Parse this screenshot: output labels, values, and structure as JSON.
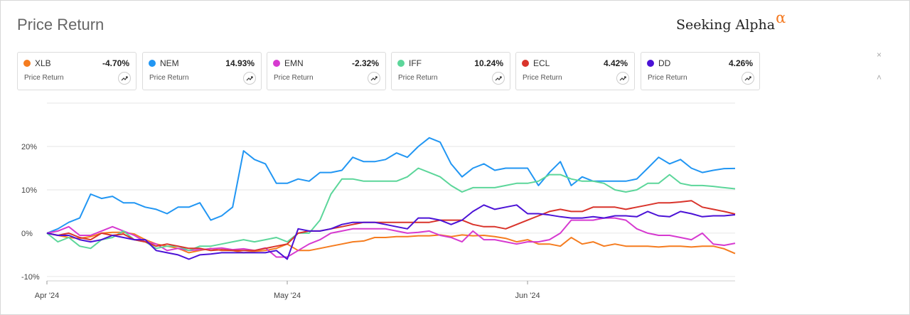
{
  "header": {
    "title": "Price Return",
    "brand": "Seeking Alpha",
    "brand_mark": "α"
  },
  "cards": [
    {
      "ticker": "XLB",
      "change": "-4.70%",
      "label": "Price Return",
      "color": "#f57c1f"
    },
    {
      "ticker": "NEM",
      "change": "14.93%",
      "label": "Price Return",
      "color": "#2196f3"
    },
    {
      "ticker": "EMN",
      "change": "-2.32%",
      "label": "Price Return",
      "color": "#d63ad0"
    },
    {
      "ticker": "IFF",
      "change": "10.24%",
      "label": "Price Return",
      "color": "#5cd69a"
    },
    {
      "ticker": "ECL",
      "change": "4.42%",
      "label": "Price Return",
      "color": "#d9342b"
    },
    {
      "ticker": "DD",
      "change": "4.26%",
      "label": "Price Return",
      "color": "#4b12d6"
    }
  ],
  "controls": {
    "close_icon": "close-icon",
    "collapse_icon": "chevron-up-icon",
    "chart_button_icon": "trend-line-icon",
    "close_glyph": "×",
    "collapse_glyph": "˄"
  },
  "chart_data": {
    "type": "line",
    "title": "",
    "xlabel": "",
    "ylabel": "",
    "x": [
      "2024-04-01",
      "2024-04-02",
      "2024-04-03",
      "2024-04-04",
      "2024-04-05",
      "2024-04-08",
      "2024-04-09",
      "2024-04-10",
      "2024-04-11",
      "2024-04-12",
      "2024-04-15",
      "2024-04-16",
      "2024-04-17",
      "2024-04-18",
      "2024-04-19",
      "2024-04-22",
      "2024-04-23",
      "2024-04-24",
      "2024-04-25",
      "2024-04-26",
      "2024-04-29",
      "2024-04-30",
      "2024-05-01",
      "2024-05-02",
      "2024-05-03",
      "2024-05-06",
      "2024-05-07",
      "2024-05-08",
      "2024-05-09",
      "2024-05-10",
      "2024-05-13",
      "2024-05-14",
      "2024-05-15",
      "2024-05-16",
      "2024-05-17",
      "2024-05-20",
      "2024-05-21",
      "2024-05-22",
      "2024-05-23",
      "2024-05-24",
      "2024-05-28",
      "2024-05-29",
      "2024-05-30",
      "2024-05-31",
      "2024-06-03",
      "2024-06-04",
      "2024-06-05",
      "2024-06-06",
      "2024-06-07",
      "2024-06-10",
      "2024-06-11",
      "2024-06-12",
      "2024-06-13",
      "2024-06-14",
      "2024-06-17",
      "2024-06-18",
      "2024-06-20",
      "2024-06-21",
      "2024-06-24",
      "2024-06-25",
      "2024-06-26",
      "2024-06-27",
      "2024-06-28",
      "2024-07-01"
    ],
    "x_ticks": [
      "Apr '24",
      "May '24",
      "Jun '24"
    ],
    "y_ticks": [
      "20%",
      "10%",
      "0%",
      "-10%"
    ],
    "ylim": [
      -11,
      30
    ],
    "grid": true,
    "legend": "cards-top",
    "series": [
      {
        "name": "XLB",
        "color": "#f57c1f",
        "values": [
          0,
          -0.5,
          -1,
          -1.2,
          -0.8,
          0,
          0.2,
          0.2,
          -0.2,
          -1.5,
          -2.5,
          -3,
          -3.5,
          -4.5,
          -4,
          -3.5,
          -4,
          -4,
          -4.5,
          -4.2,
          -4,
          -3.5,
          -2.5,
          -4,
          -4,
          -3.5,
          -3,
          -2.5,
          -2,
          -1.8,
          -1,
          -1,
          -0.8,
          -0.8,
          -0.6,
          -0.6,
          -0.4,
          -0.8,
          -0.4,
          -0.6,
          -0.5,
          -0.8,
          -1.2,
          -2,
          -1.5,
          -2.5,
          -2.5,
          -3,
          -1,
          -2.5,
          -2,
          -3,
          -2.5,
          -3,
          -3,
          -3,
          -3.2,
          -3,
          -3,
          -3.2,
          -3,
          -3,
          -3.6,
          -4.7
        ]
      },
      {
        "name": "NEM",
        "color": "#2196f3",
        "values": [
          0,
          1,
          2.5,
          3.5,
          9,
          8,
          8.5,
          7,
          7,
          6,
          5.5,
          4.5,
          6,
          6,
          7,
          3,
          4,
          6,
          19,
          17,
          16,
          11.5,
          11.5,
          12.5,
          12,
          14,
          14,
          14.5,
          17.5,
          16.5,
          16.5,
          17,
          18.5,
          17.5,
          20,
          22,
          21,
          16,
          13,
          15,
          16,
          14.5,
          15,
          15,
          15,
          11,
          14,
          16.5,
          11,
          13,
          12,
          12,
          12,
          12,
          12.5,
          15,
          17.5,
          16,
          17,
          15,
          14,
          14.5,
          14.9,
          14.93
        ]
      },
      {
        "name": "EMN",
        "color": "#d63ad0",
        "values": [
          0,
          0.5,
          1.5,
          -0.5,
          -0.5,
          0.5,
          1.5,
          0.5,
          -0.5,
          -2,
          -2.5,
          -4,
          -3.5,
          -4,
          -3.8,
          -3.6,
          -3.4,
          -3.8,
          -3.6,
          -4,
          -3.4,
          -5.5,
          -5.5,
          -4,
          -2.5,
          -1.5,
          0,
          0.5,
          1,
          1,
          1,
          1,
          0.5,
          0,
          0.2,
          0.5,
          -0.5,
          -1,
          -2,
          0.5,
          -1.5,
          -1.5,
          -2,
          -2.5,
          -2,
          -2,
          -1.5,
          0,
          3,
          3,
          3,
          3.5,
          3.5,
          3,
          1,
          0,
          -0.5,
          -0.5,
          -1,
          -1.5,
          0,
          -2.5,
          -2.8,
          -2.32
        ]
      },
      {
        "name": "IFF",
        "color": "#5cd69a",
        "values": [
          0,
          -2,
          -1,
          -3,
          -3.5,
          -1.5,
          -1,
          0.5,
          -1.5,
          -2,
          -3.5,
          -3,
          -3,
          -4,
          -3,
          -3,
          -2.5,
          -2,
          -1.5,
          -2,
          -1.5,
          -1,
          -2,
          0,
          0,
          3,
          9,
          12.5,
          12.5,
          12,
          12,
          12,
          12,
          13,
          15,
          14,
          13,
          11,
          9.5,
          10.5,
          10.5,
          10.5,
          11,
          11.5,
          11.5,
          12,
          13.5,
          13.5,
          12.5,
          12,
          12,
          11.5,
          10,
          9.5,
          10,
          11.5,
          11.5,
          13.5,
          11.5,
          11,
          11,
          10.8,
          10.5,
          10.24
        ]
      },
      {
        "name": "ECL",
        "color": "#d9342b",
        "values": [
          0,
          -0.5,
          0,
          -1,
          -1.5,
          0,
          -0.5,
          -0.2,
          -1.5,
          -2,
          -3,
          -2.5,
          -3,
          -3.5,
          -3.5,
          -4,
          -3.8,
          -4,
          -4,
          -4,
          -3.5,
          -3,
          -2.5,
          0,
          0.5,
          0.5,
          1,
          1.5,
          2,
          2.5,
          2.5,
          2.5,
          2.5,
          2.5,
          2.5,
          2.5,
          3,
          3,
          3,
          2,
          1.5,
          1.5,
          1,
          2,
          3,
          4,
          5,
          5.5,
          5,
          5,
          6,
          6,
          6,
          5.5,
          6,
          6.5,
          7,
          7,
          7.2,
          7.5,
          6,
          5.5,
          5,
          4.42
        ]
      },
      {
        "name": "DD",
        "color": "#4b12d6",
        "values": [
          0,
          -0.5,
          -0.5,
          -1.5,
          -2,
          -1.5,
          -0.5,
          -1,
          -1.5,
          -1.5,
          -4,
          -4.5,
          -5,
          -6,
          -5,
          -4.8,
          -4.5,
          -4.5,
          -4.5,
          -4.5,
          -4.5,
          -4,
          -6,
          1,
          0.5,
          0.5,
          1,
          2,
          2.5,
          2.5,
          2.5,
          2,
          1.5,
          1,
          3.5,
          3.5,
          3,
          2,
          3,
          5,
          6.5,
          5.5,
          6,
          6.5,
          4.5,
          4.5,
          4.2,
          3.8,
          3.5,
          3.5,
          3.8,
          3.5,
          4,
          4,
          3.8,
          5,
          4,
          3.8,
          5,
          4.5,
          3.8,
          4,
          4,
          4.26
        ]
      }
    ]
  }
}
